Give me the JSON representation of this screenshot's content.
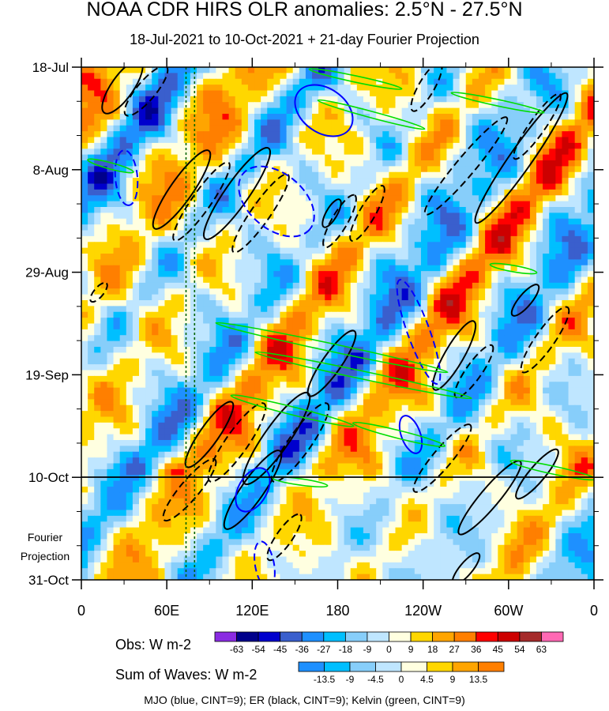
{
  "title": "NOAA CDR HIRS OLR anomalies: 2.5°N - 27.5°N",
  "subtitle": "18-Jul-2021 to 10-Oct-2021 + 21-day Fourier Projection",
  "footer": "MJO (blue, CINT=9); ER (black, CINT=9); Kelvin (green, CINT=9)",
  "fourier_label": [
    "Fourier",
    "Projection"
  ],
  "chart_data": {
    "type": "heatmap",
    "y_axis": {
      "labels": [
        "18-Jul",
        "8-Aug",
        "29-Aug",
        "19-Sep",
        "10-Oct",
        "31-Oct"
      ],
      "day_offsets": [
        0,
        21,
        42,
        63,
        84,
        105
      ],
      "reversed": false,
      "observation_end_day": 84
    },
    "x_axis": {
      "labels": [
        "0",
        "60E",
        "120E",
        "180",
        "120W",
        "60W",
        "0"
      ],
      "longitudes": [
        0,
        60,
        120,
        180,
        240,
        300,
        360
      ],
      "range": [
        0,
        360
      ]
    },
    "reference_lines_lon": [
      73.5,
      79.5
    ],
    "colorbar_obs": {
      "label": "Obs: W m-2",
      "ticks": [
        "-63",
        "-54",
        "-45",
        "-36",
        "-27",
        "-18",
        "-9",
        "0",
        "9",
        "18",
        "27",
        "36",
        "45",
        "54",
        "63"
      ],
      "colors": [
        "#8a2be2",
        "#00008b",
        "#0000cd",
        "#3a5fcd",
        "#1e90ff",
        "#00bfff",
        "#87cefa",
        "#bfe6ff",
        "#ffffe0",
        "#ffd700",
        "#ffa500",
        "#ff7f00",
        "#ff0000",
        "#cd0000",
        "#a52a2a",
        "#ff69b4"
      ]
    },
    "colorbar_waves": {
      "label": "Sum of Waves: W m-2",
      "ticks": [
        "-13.5",
        "-9",
        "-4.5",
        "0",
        "4.5",
        "9",
        "13.5"
      ],
      "colors": [
        "#1e90ff",
        "#00bfff",
        "#87cefa",
        "#bfe6ff",
        "#ffffe0",
        "#ffd700",
        "#ffa500",
        "#ff7f00"
      ]
    },
    "series": [
      {
        "name": "MJO",
        "color": "#0000ff"
      },
      {
        "name": "ER",
        "color": "#000000"
      },
      {
        "name": "Kelvin",
        "color": "#00dd00"
      }
    ]
  }
}
